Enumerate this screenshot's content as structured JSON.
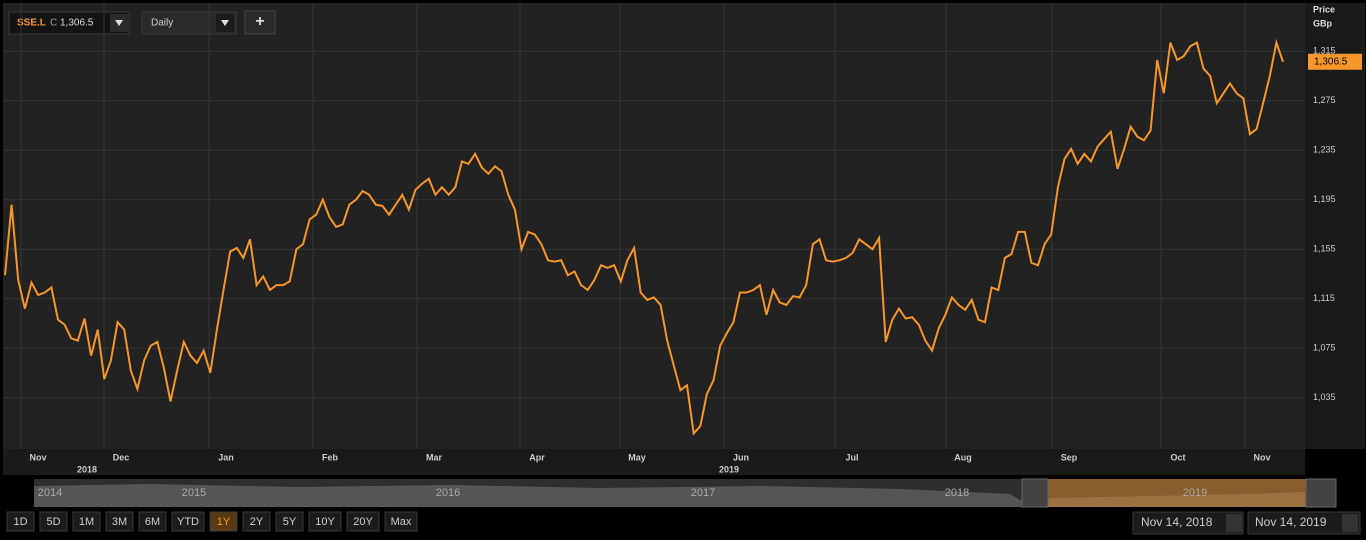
{
  "ui": {
    "symbol": "SSE.L",
    "close_prefix": "C",
    "close_value": "1,306.5",
    "interval": "Daily",
    "add_button": "+",
    "range_buttons": [
      "1D",
      "5D",
      "1M",
      "3M",
      "6M",
      "YTD",
      "1Y",
      "2Y",
      "5Y",
      "10Y",
      "20Y",
      "Max"
    ],
    "active_range": "1Y",
    "start_date": "Nov 14, 2018",
    "end_date": "Nov 14, 2019",
    "navigator_years": [
      "2014",
      "2015",
      "2016",
      "2017",
      "2018",
      "2019"
    ]
  },
  "chart_data": {
    "type": "line",
    "y_axis_label": "Price",
    "y_axis_unit": "GBp",
    "color": "#f7962b",
    "x_month_labels": [
      "Nov",
      "Dec",
      "Jan",
      "Feb",
      "Mar",
      "Apr",
      "May",
      "Jun",
      "Jul",
      "Aug",
      "Sep",
      "Oct",
      "Nov"
    ],
    "x_year_labels": [
      "2018",
      "2019"
    ],
    "values": [
      1134,
      1191,
      1130,
      1107,
      1128,
      1118,
      1120,
      1124,
      1098,
      1094,
      1083,
      1081,
      1099,
      1069,
      1090,
      1050,
      1065,
      1096,
      1090,
      1057,
      1042,
      1065,
      1077,
      1080,
      1059,
      1032,
      1057,
      1080,
      1069,
      1063,
      1073,
      1055,
      1090,
      1122,
      1153,
      1156,
      1148,
      1163,
      1126,
      1133,
      1122,
      1126,
      1126,
      1129,
      1155,
      1159,
      1179,
      1183,
      1195,
      1181,
      1173,
      1175,
      1191,
      1195,
      1202,
      1199,
      1191,
      1190,
      1183,
      1191,
      1199,
      1187,
      1203,
      1208,
      1212,
      1199,
      1205,
      1199,
      1205,
      1226,
      1224,
      1232,
      1221,
      1216,
      1222,
      1218,
      1199,
      1187,
      1155,
      1169,
      1167,
      1159,
      1146,
      1145,
      1146,
      1134,
      1137,
      1126,
      1122,
      1130,
      1142,
      1140,
      1142,
      1129,
      1146,
      1156,
      1120,
      1114,
      1116,
      1110,
      1081,
      1061,
      1041,
      1045,
      1006,
      1012,
      1038,
      1049,
      1077,
      1087,
      1096,
      1120,
      1120,
      1122,
      1126,
      1102,
      1122,
      1112,
      1110,
      1117,
      1116,
      1126,
      1159,
      1163,
      1146,
      1145,
      1146,
      1148,
      1152,
      1163,
      1159,
      1155,
      1164,
      1080,
      1098,
      1107,
      1099,
      1100,
      1094,
      1081,
      1073,
      1091,
      1102,
      1116,
      1110,
      1106,
      1114,
      1098,
      1096,
      1124,
      1122,
      1148,
      1151,
      1169,
      1169,
      1144,
      1142,
      1159,
      1167,
      1205,
      1228,
      1236,
      1224,
      1232,
      1226,
      1238,
      1244,
      1250,
      1220,
      1236,
      1254,
      1246,
      1243,
      1251,
      1308,
      1281,
      1322,
      1308,
      1311,
      1319,
      1322,
      1301,
      1295,
      1273,
      1281,
      1289,
      1281,
      1277,
      1248,
      1252,
      1273,
      1295,
      1322,
      1306.5
    ],
    "last_value_label": "1,306.5",
    "ylim": [
      993.5,
      1354
    ],
    "yticks": [
      {
        "value": 1035,
        "label": "1,035"
      },
      {
        "value": 1075,
        "label": "1,075"
      },
      {
        "value": 1115,
        "label": "1,115"
      },
      {
        "value": 1155,
        "label": "1,155"
      },
      {
        "value": 1195,
        "label": "1,195"
      },
      {
        "value": 1235,
        "label": "1,235"
      },
      {
        "value": 1275,
        "label": "1,275"
      },
      {
        "value": 1315,
        "label": "1,315"
      }
    ],
    "grid": true
  }
}
